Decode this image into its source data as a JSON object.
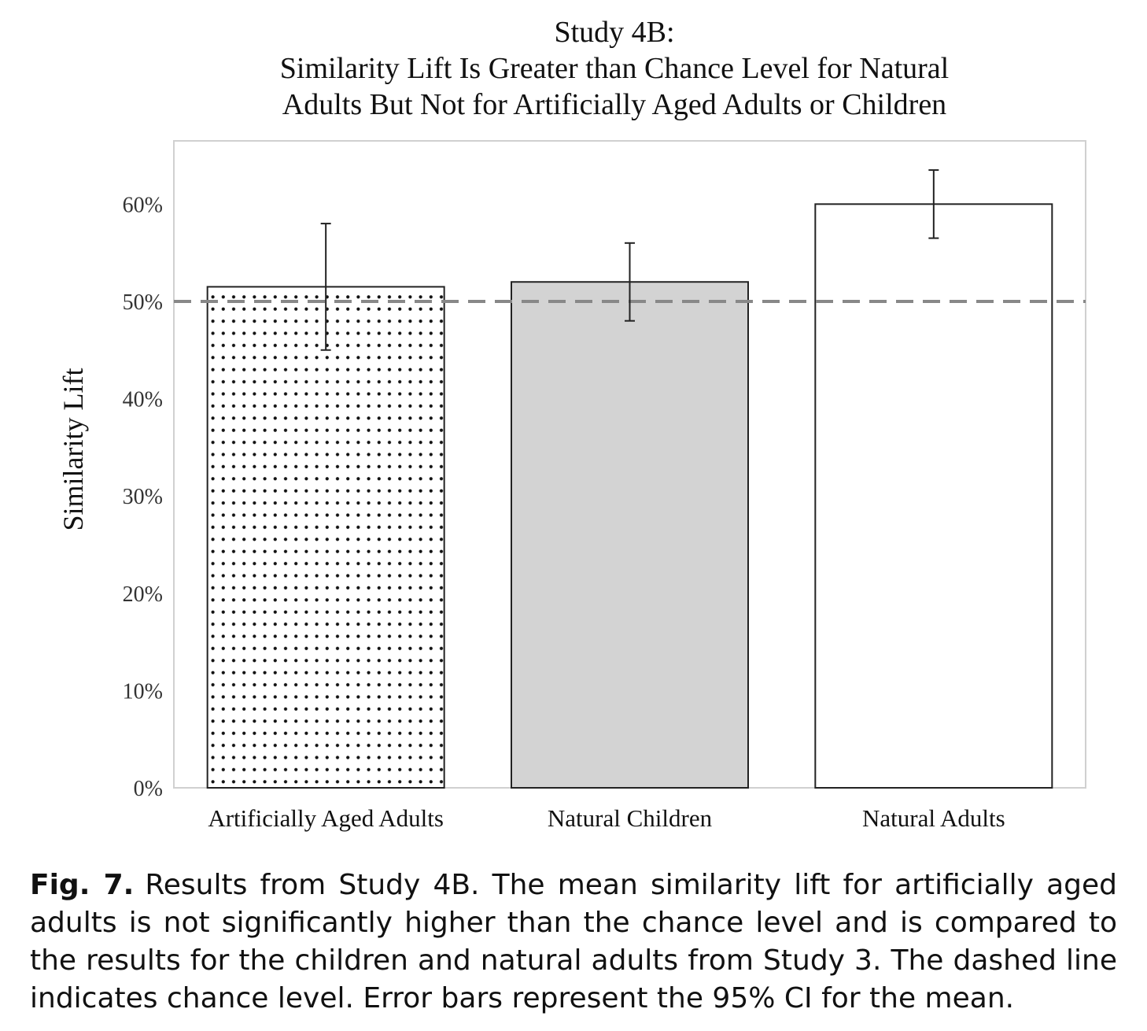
{
  "chart_data": {
    "type": "bar",
    "title": [
      "Study 4B:",
      "Similarity Lift Is Greater than Chance Level for Natural",
      "Adults But Not for Artificially Aged Adults or Children"
    ],
    "xlabel": "",
    "ylabel": "Similarity Lift",
    "ylim": [
      0,
      66.5
    ],
    "yticks": [
      0,
      10,
      20,
      30,
      40,
      50,
      60
    ],
    "ytick_labels": [
      "0%",
      "10%",
      "20%",
      "30%",
      "40%",
      "50%",
      "60%"
    ],
    "categories": [
      "Artificially Aged Adults",
      "Natural Children",
      "Natural Adults"
    ],
    "values": [
      51.5,
      52.0,
      60.0
    ],
    "error_low": [
      45.0,
      48.0,
      56.5
    ],
    "error_high": [
      58.0,
      56.0,
      63.5
    ],
    "bar_fills": [
      "dotted",
      "#d3d3d3",
      "#ffffff"
    ],
    "reference_line": {
      "value": 50,
      "style": "dashed",
      "color": "#888888"
    },
    "grid": false,
    "legend": "none"
  },
  "caption": {
    "label": "Fig. 7.",
    "text": "Results from Study 4B. The mean similarity lift for artificially aged adults is not significantly higher than the chance level and is compared to the results for the children and natural adults from Study 3. The dashed line indicates chance level. Error bars represent the 95% CI for the mean."
  }
}
